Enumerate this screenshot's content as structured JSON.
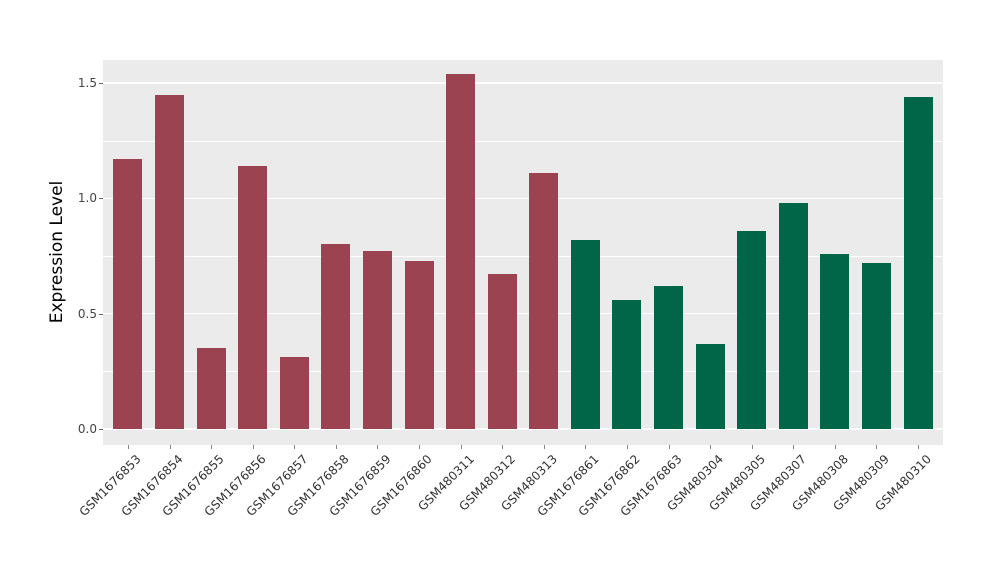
{
  "chart_data": {
    "type": "bar",
    "title": "",
    "xlabel": "",
    "ylabel": "Expression Level",
    "ylim": [
      -0.07,
      1.6
    ],
    "yticks": [
      0,
      0.5,
      1,
      1.5
    ],
    "ytick_labels": [
      "0.0",
      "0.5",
      "1.0",
      "1.5"
    ],
    "minor_gridlines": [
      0.25,
      0.75,
      1.25
    ],
    "grid": "on",
    "legend_position": "none",
    "panel_background": "#EBEBEB",
    "gridline_color": "#FFFFFF",
    "group_colors": {
      "group1": "#9C4351",
      "group2": "#006647"
    },
    "categories": [
      "GSM1676853",
      "GSM1676854",
      "GSM1676855",
      "GSM1676856",
      "GSM1676857",
      "GSM1676858",
      "GSM1676859",
      "GSM1676860",
      "GSM480311",
      "GSM480312",
      "GSM480313",
      "GSM1676861",
      "GSM1676862",
      "GSM1676863",
      "GSM480304",
      "GSM480305",
      "GSM480307",
      "GSM480308",
      "GSM480309",
      "GSM480310"
    ],
    "values": [
      1.17,
      1.45,
      0.35,
      1.14,
      0.31,
      0.8,
      0.77,
      0.73,
      1.54,
      0.67,
      1.11,
      0.82,
      0.56,
      0.62,
      0.37,
      0.86,
      0.98,
      0.76,
      0.72,
      1.44
    ],
    "groups": [
      "group1",
      "group1",
      "group1",
      "group1",
      "group1",
      "group1",
      "group1",
      "group1",
      "group1",
      "group1",
      "group1",
      "group2",
      "group2",
      "group2",
      "group2",
      "group2",
      "group2",
      "group2",
      "group2",
      "group2"
    ]
  }
}
